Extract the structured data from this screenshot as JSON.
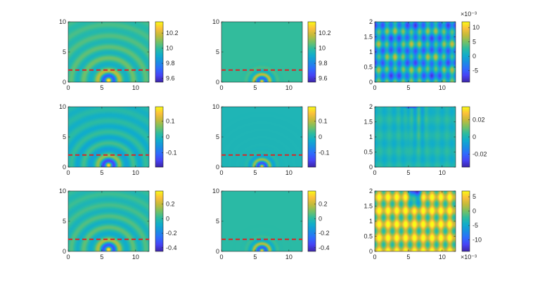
{
  "colors": {
    "axis": "#262626",
    "dashed_line": "#d62728",
    "colormap": [
      "#3e26a8",
      "#4743f5",
      "#2f6bfe",
      "#1a8fe3",
      "#10adcc",
      "#2dbca0",
      "#77c164",
      "#c4bb3a",
      "#fcc03b",
      "#f9fb15"
    ]
  },
  "chart_data": [
    {
      "type": "heatmap",
      "panel": "r1c1",
      "field": "arc-waves",
      "xlim": [
        0,
        12
      ],
      "ylim": [
        0,
        10
      ],
      "xticks": [
        "0",
        "5",
        "10"
      ],
      "yticks": [
        "0",
        "5",
        "10"
      ],
      "dashed_line_y": 2,
      "source_x": 6,
      "clim": [
        9.55,
        10.35
      ],
      "base_value": 10,
      "colorbar_ticks": [
        "10.2",
        "10",
        "9.8",
        "9.6"
      ],
      "colorbar_tick_values": [
        10.2,
        10,
        9.8,
        9.6
      ],
      "colorbar_exponent": ""
    },
    {
      "type": "heatmap",
      "panel": "r1c2",
      "field": "local-arcs",
      "xlim": [
        0,
        12
      ],
      "ylim": [
        0,
        10
      ],
      "xticks": [
        "0",
        "5",
        "10"
      ],
      "yticks": [
        "0",
        "5",
        "10"
      ],
      "dashed_line_y": 2,
      "source_x": 6,
      "clim": [
        9.55,
        10.35
      ],
      "base_value": 10,
      "colorbar_ticks": [
        "10.2",
        "10",
        "9.8",
        "9.6"
      ],
      "colorbar_tick_values": [
        10.2,
        10,
        9.8,
        9.6
      ],
      "colorbar_exponent": ""
    },
    {
      "type": "heatmap",
      "panel": "r1c3",
      "field": "diamond",
      "xlim": [
        0,
        12
      ],
      "ylim": [
        0,
        2
      ],
      "xticks": [
        "0",
        "5",
        "10"
      ],
      "yticks": [
        "0",
        "0.5",
        "1",
        "1.5",
        "2"
      ],
      "clim": [
        -9,
        12
      ],
      "base_value": 0,
      "colorbar_ticks": [
        "10",
        "5",
        "0",
        "-5"
      ],
      "colorbar_tick_values": [
        10,
        5,
        0,
        -5
      ],
      "colorbar_exponent": "×10⁻³",
      "colorbar_exponent_position": "top"
    },
    {
      "type": "heatmap",
      "panel": "r2c1",
      "field": "arc-waves",
      "xlim": [
        0,
        12
      ],
      "ylim": [
        0,
        10
      ],
      "xticks": [
        "0",
        "5",
        "10"
      ],
      "yticks": [
        "0",
        "5",
        "10"
      ],
      "dashed_line_y": 2,
      "source_x": 6,
      "clim": [
        -0.19,
        0.19
      ],
      "base_value": 0,
      "colorbar_ticks": [
        "0.1",
        "0",
        "-0.1"
      ],
      "colorbar_tick_values": [
        0.1,
        0,
        -0.1
      ],
      "colorbar_exponent": ""
    },
    {
      "type": "heatmap",
      "panel": "r2c2",
      "field": "local-arcs",
      "xlim": [
        0,
        12
      ],
      "ylim": [
        0,
        10
      ],
      "xticks": [
        "0",
        "5",
        "10"
      ],
      "yticks": [
        "0",
        "5",
        "10"
      ],
      "dashed_line_y": 2,
      "source_x": 6,
      "clim": [
        -0.19,
        0.19
      ],
      "base_value": 0,
      "colorbar_ticks": [
        "0.1",
        "0",
        "-0.1"
      ],
      "colorbar_tick_values": [
        0.1,
        0,
        -0.1
      ],
      "colorbar_exponent": ""
    },
    {
      "type": "heatmap",
      "panel": "r2c3",
      "field": "top-spot",
      "xlim": [
        0,
        12
      ],
      "ylim": [
        0,
        2
      ],
      "xticks": [
        "0",
        "5",
        "10"
      ],
      "yticks": [
        "0",
        "0.5",
        "1",
        "1.5",
        "2"
      ],
      "clim": [
        -0.035,
        0.035
      ],
      "base_value": 0,
      "colorbar_ticks": [
        "0.02",
        "0",
        "-0.02"
      ],
      "colorbar_tick_values": [
        0.02,
        0,
        -0.02
      ],
      "colorbar_exponent": ""
    },
    {
      "type": "heatmap",
      "panel": "r3c1",
      "field": "arc-waves",
      "xlim": [
        0,
        12
      ],
      "ylim": [
        0,
        10
      ],
      "xticks": [
        "0",
        "5",
        "10"
      ],
      "yticks": [
        "0",
        "5",
        "10"
      ],
      "dashed_line_y": 2,
      "source_x": 6,
      "clim": [
        -0.45,
        0.38
      ],
      "base_value": 0,
      "colorbar_ticks": [
        "0.2",
        "0",
        "-0.2",
        "-0.4"
      ],
      "colorbar_tick_values": [
        0.2,
        0,
        -0.2,
        -0.4
      ],
      "colorbar_exponent": ""
    },
    {
      "type": "heatmap",
      "panel": "r3c2",
      "field": "local-arcs",
      "xlim": [
        0,
        12
      ],
      "ylim": [
        0,
        10
      ],
      "xticks": [
        "0",
        "5",
        "10"
      ],
      "yticks": [
        "0",
        "5",
        "10"
      ],
      "dashed_line_y": 2,
      "source_x": 6,
      "clim": [
        -0.45,
        0.38
      ],
      "base_value": 0,
      "colorbar_ticks": [
        "0.2",
        "0",
        "-0.2",
        "-0.4"
      ],
      "colorbar_tick_values": [
        0.2,
        0,
        -0.2,
        -0.4
      ],
      "colorbar_exponent": ""
    },
    {
      "type": "heatmap",
      "panel": "r3c3",
      "field": "diamond-dip",
      "xlim": [
        0,
        12
      ],
      "ylim": [
        0,
        2
      ],
      "xticks": [
        "0",
        "5",
        "10"
      ],
      "yticks": [
        "0",
        "0.5",
        "1",
        "1.5",
        "2"
      ],
      "clim": [
        -14,
        7
      ],
      "base_value": 0,
      "colorbar_ticks": [
        "5",
        "0",
        "-5",
        "-10"
      ],
      "colorbar_tick_values": [
        5,
        0,
        -5,
        -10
      ],
      "colorbar_exponent": "×10⁻³",
      "colorbar_exponent_position": "bottom"
    }
  ]
}
